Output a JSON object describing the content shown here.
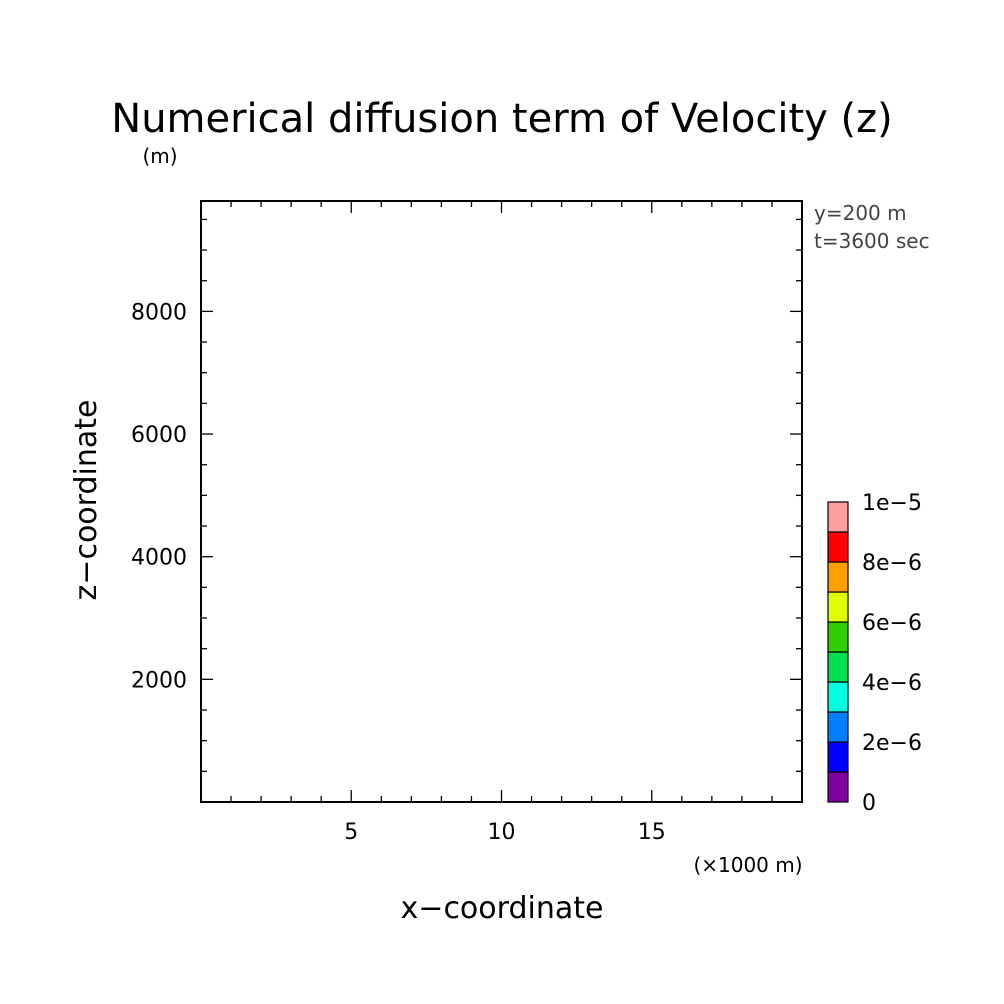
{
  "chart_data": {
    "type": "heatmap",
    "title": "Numerical diffusion term of Velocity (z)",
    "xlabel": "x−coordinate",
    "ylabel": "z−coordinate",
    "x_unit": "(×1000 m)",
    "y_unit": "(m)",
    "xlim": [
      0,
      20
    ],
    "ylim": [
      0,
      9800
    ],
    "x_ticks": [
      5,
      10,
      15
    ],
    "x_tick_labels": [
      "5",
      "10",
      "15"
    ],
    "y_ticks": [
      2000,
      4000,
      6000,
      8000
    ],
    "y_tick_labels": [
      "2000",
      "4000",
      "6000",
      "8000"
    ],
    "x_minor_step": 1,
    "y_minor_step": 500,
    "annotations": [
      "y=200 m",
      "t=3600 sec"
    ],
    "field": [],
    "colorbar": {
      "min": 0,
      "max": 1e-05,
      "levels": [
        0,
        1e-06,
        2e-06,
        3e-06,
        4e-06,
        5e-06,
        6e-06,
        7e-06,
        8e-06,
        9e-06,
        1e-05
      ],
      "colors": [
        "#8000a0",
        "#0000ff",
        "#0080ff",
        "#00ffe0",
        "#00e050",
        "#30d000",
        "#e0ff00",
        "#ffa000",
        "#ff0000",
        "#ffa0a0"
      ],
      "tick_values": [
        0,
        2e-06,
        4e-06,
        6e-06,
        8e-06,
        1e-05
      ],
      "tick_labels": [
        "0",
        "2e−6",
        "4e−6",
        "6e−6",
        "8e−6",
        "1e−5"
      ]
    }
  }
}
